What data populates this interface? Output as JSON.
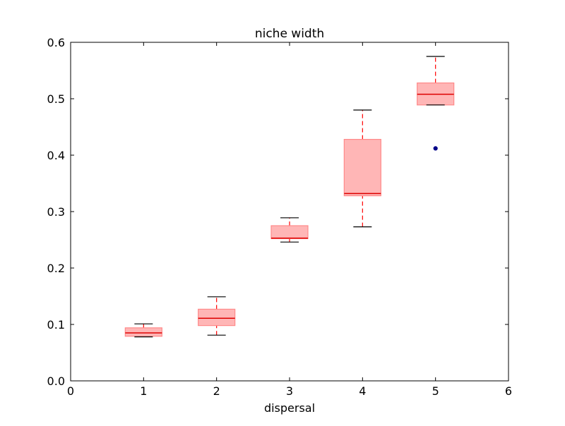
{
  "chart_data": {
    "type": "box",
    "title": "niche width",
    "xlabel": "dispersal",
    "ylabel": "",
    "xlim": [
      0,
      6
    ],
    "ylim": [
      0,
      0.6
    ],
    "xticks": [
      "0",
      "1",
      "2",
      "3",
      "4",
      "5",
      "6"
    ],
    "yticks": [
      "0.0",
      "0.1",
      "0.2",
      "0.3",
      "0.4",
      "0.5",
      "0.6"
    ],
    "grid": false,
    "colors": {
      "box_fill": "#ffb6b6",
      "box_edge": "#ff8a8a",
      "median": "#dd0000",
      "whisker": "#ff0000",
      "cap": "#000000",
      "flier": "#000088",
      "axes": "#000000"
    },
    "boxes": [
      {
        "x": 1,
        "whisker_low": 0.078,
        "q1": 0.079,
        "median": 0.085,
        "q3": 0.094,
        "whisker_high": 0.101,
        "outliers": []
      },
      {
        "x": 2,
        "whisker_low": 0.081,
        "q1": 0.098,
        "median": 0.111,
        "q3": 0.127,
        "whisker_high": 0.149,
        "outliers": []
      },
      {
        "x": 3,
        "whisker_low": 0.246,
        "q1": 0.252,
        "median": 0.253,
        "q3": 0.275,
        "whisker_high": 0.289,
        "outliers": []
      },
      {
        "x": 4,
        "whisker_low": 0.273,
        "q1": 0.328,
        "median": 0.332,
        "q3": 0.428,
        "whisker_high": 0.48,
        "outliers": []
      },
      {
        "x": 5,
        "whisker_low": 0.489,
        "q1": 0.489,
        "median": 0.508,
        "q3": 0.528,
        "whisker_high": 0.575,
        "outliers": [
          0.412
        ]
      }
    ]
  }
}
